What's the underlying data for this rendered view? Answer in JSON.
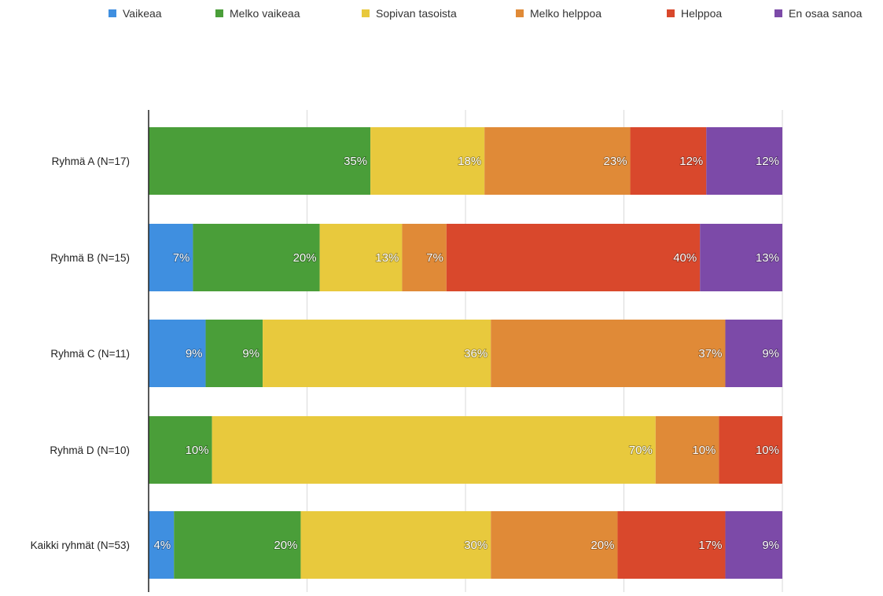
{
  "chart_data": {
    "type": "bar",
    "orientation": "horizontal",
    "stacked": true,
    "normalized": true,
    "title": "",
    "xlabel": "",
    "ylabel": "",
    "xlim": [
      0,
      100
    ],
    "grid": true,
    "legend_position": "top",
    "categories": [
      "Ryhmä A (N=17)",
      "Ryhmä B (N=15)",
      "Ryhmä C (N=11)",
      "Ryhmä D (N=10)",
      "Kaikki ryhmät (N=53)"
    ],
    "series": [
      {
        "name": "Vaikeaa",
        "color": "#3f8fe0",
        "values": [
          0,
          7,
          9,
          0,
          4
        ],
        "labels": [
          "",
          "7%",
          "9%",
          "",
          "4%"
        ]
      },
      {
        "name": "Melko vaikeaa",
        "color": "#4a9e39",
        "values": [
          35,
          20,
          9,
          10,
          20
        ],
        "labels": [
          "35%",
          "20%",
          "9%",
          "10%",
          "20%"
        ]
      },
      {
        "name": "Sopivan tasoista",
        "color": "#e8c93d",
        "values": [
          18,
          13,
          36,
          70,
          30
        ],
        "labels": [
          "18%",
          "13%",
          "36%",
          "70%",
          "30%"
        ]
      },
      {
        "name": "Melko helppoa",
        "color": "#e08a37",
        "values": [
          23,
          7,
          37,
          10,
          20
        ],
        "labels": [
          "23%",
          "7%",
          "37%",
          "10%",
          "20%"
        ]
      },
      {
        "name": "Helppoa",
        "color": "#d9482c",
        "values": [
          12,
          40,
          0,
          10,
          17
        ],
        "labels": [
          "12%",
          "40%",
          "",
          "10%",
          "17%"
        ]
      },
      {
        "name": "En osaa sanoa",
        "color": "#7c4aa8",
        "values": [
          12,
          13,
          9,
          0,
          9
        ],
        "labels": [
          "12%",
          "13%",
          "9%",
          "",
          "9%"
        ]
      }
    ]
  }
}
